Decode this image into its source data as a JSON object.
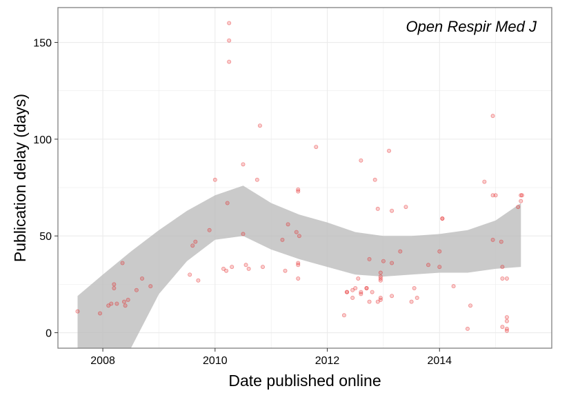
{
  "chart_data": {
    "type": "scatter",
    "title": "Open Respir Med J",
    "xlabel": "Date published online",
    "ylabel": "Publication delay (days)",
    "xlim": [
      2007.2,
      2016.0
    ],
    "ylim": [
      -8,
      168
    ],
    "x_ticks": [
      2008,
      2010,
      2012,
      2014
    ],
    "y_ticks": [
      0,
      50,
      100,
      150
    ],
    "grid": true,
    "legend": "none",
    "colors": {
      "points": "#e41a1c",
      "band": "#bdbdbd",
      "grid": "#ebebeb",
      "border": "#7f7f7f"
    },
    "smooth_band": {
      "x": [
        2007.55,
        2008.0,
        2008.5,
        2009.0,
        2009.5,
        2010.0,
        2010.5,
        2011.0,
        2011.5,
        2012.0,
        2012.5,
        2013.0,
        2013.5,
        2014.0,
        2014.5,
        2015.0,
        2015.45
      ],
      "upper": [
        19,
        30,
        42,
        53,
        63,
        71,
        76,
        67,
        61,
        57,
        52,
        50,
        50,
        51,
        53,
        58,
        67
      ],
      "lower": [
        -8,
        -8,
        -8,
        20,
        37,
        48,
        50,
        43,
        38,
        34,
        30,
        29,
        30,
        31,
        31,
        33,
        34
      ]
    },
    "points": [
      {
        "x": 2007.55,
        "y": 11
      },
      {
        "x": 2007.95,
        "y": 10
      },
      {
        "x": 2008.1,
        "y": 14
      },
      {
        "x": 2008.15,
        "y": 15
      },
      {
        "x": 2008.2,
        "y": 23
      },
      {
        "x": 2008.2,
        "y": 25
      },
      {
        "x": 2008.25,
        "y": 15
      },
      {
        "x": 2008.35,
        "y": 36
      },
      {
        "x": 2008.38,
        "y": 16
      },
      {
        "x": 2008.4,
        "y": 14
      },
      {
        "x": 2008.45,
        "y": 17
      },
      {
        "x": 2008.6,
        "y": 22
      },
      {
        "x": 2008.7,
        "y": 28
      },
      {
        "x": 2008.85,
        "y": 24
      },
      {
        "x": 2009.55,
        "y": 30
      },
      {
        "x": 2009.6,
        "y": 45
      },
      {
        "x": 2009.65,
        "y": 47
      },
      {
        "x": 2009.7,
        "y": 27
      },
      {
        "x": 2009.9,
        "y": 53
      },
      {
        "x": 2010.0,
        "y": 79
      },
      {
        "x": 2010.15,
        "y": 33
      },
      {
        "x": 2010.2,
        "y": 32
      },
      {
        "x": 2010.22,
        "y": 67
      },
      {
        "x": 2010.25,
        "y": 160
      },
      {
        "x": 2010.25,
        "y": 151
      },
      {
        "x": 2010.25,
        "y": 140
      },
      {
        "x": 2010.3,
        "y": 34
      },
      {
        "x": 2010.5,
        "y": 51
      },
      {
        "x": 2010.5,
        "y": 87
      },
      {
        "x": 2010.55,
        "y": 35
      },
      {
        "x": 2010.6,
        "y": 33
      },
      {
        "x": 2010.75,
        "y": 79
      },
      {
        "x": 2010.8,
        "y": 107
      },
      {
        "x": 2010.85,
        "y": 34
      },
      {
        "x": 2011.2,
        "y": 48
      },
      {
        "x": 2011.25,
        "y": 32
      },
      {
        "x": 2011.3,
        "y": 56
      },
      {
        "x": 2011.45,
        "y": 52
      },
      {
        "x": 2011.48,
        "y": 73
      },
      {
        "x": 2011.48,
        "y": 74
      },
      {
        "x": 2011.5,
        "y": 50
      },
      {
        "x": 2011.48,
        "y": 35
      },
      {
        "x": 2011.48,
        "y": 36
      },
      {
        "x": 2011.48,
        "y": 28
      },
      {
        "x": 2011.8,
        "y": 96
      },
      {
        "x": 2012.3,
        "y": 9
      },
      {
        "x": 2012.35,
        "y": 21
      },
      {
        "x": 2012.35,
        "y": 21
      },
      {
        "x": 2012.45,
        "y": 18
      },
      {
        "x": 2012.45,
        "y": 22
      },
      {
        "x": 2012.5,
        "y": 23
      },
      {
        "x": 2012.55,
        "y": 28
      },
      {
        "x": 2012.6,
        "y": 89
      },
      {
        "x": 2012.6,
        "y": 20
      },
      {
        "x": 2012.6,
        "y": 21
      },
      {
        "x": 2012.7,
        "y": 23
      },
      {
        "x": 2012.7,
        "y": 23
      },
      {
        "x": 2012.75,
        "y": 38
      },
      {
        "x": 2012.75,
        "y": 16
      },
      {
        "x": 2012.8,
        "y": 21
      },
      {
        "x": 2012.85,
        "y": 79
      },
      {
        "x": 2012.9,
        "y": 64
      },
      {
        "x": 2012.9,
        "y": 16
      },
      {
        "x": 2012.95,
        "y": 17
      },
      {
        "x": 2012.95,
        "y": 27
      },
      {
        "x": 2012.95,
        "y": 29
      },
      {
        "x": 2012.95,
        "y": 31
      },
      {
        "x": 2012.95,
        "y": 28
      },
      {
        "x": 2012.95,
        "y": 18
      },
      {
        "x": 2013.0,
        "y": 37
      },
      {
        "x": 2013.1,
        "y": 94
      },
      {
        "x": 2013.15,
        "y": 63
      },
      {
        "x": 2013.15,
        "y": 36
      },
      {
        "x": 2013.15,
        "y": 19
      },
      {
        "x": 2013.3,
        "y": 42
      },
      {
        "x": 2013.4,
        "y": 65
      },
      {
        "x": 2013.5,
        "y": 16
      },
      {
        "x": 2013.55,
        "y": 23
      },
      {
        "x": 2013.6,
        "y": 18
      },
      {
        "x": 2013.8,
        "y": 35
      },
      {
        "x": 2014.0,
        "y": 42
      },
      {
        "x": 2014.0,
        "y": 34
      },
      {
        "x": 2014.05,
        "y": 59
      },
      {
        "x": 2014.05,
        "y": 59
      },
      {
        "x": 2014.25,
        "y": 24
      },
      {
        "x": 2014.5,
        "y": 2
      },
      {
        "x": 2014.55,
        "y": 14
      },
      {
        "x": 2014.8,
        "y": 78
      },
      {
        "x": 2014.95,
        "y": 112
      },
      {
        "x": 2014.95,
        "y": 71
      },
      {
        "x": 2014.95,
        "y": 48
      },
      {
        "x": 2015.0,
        "y": 71
      },
      {
        "x": 2015.1,
        "y": 47
      },
      {
        "x": 2015.12,
        "y": 34
      },
      {
        "x": 2015.12,
        "y": 28
      },
      {
        "x": 2015.12,
        "y": 3
      },
      {
        "x": 2015.2,
        "y": 28
      },
      {
        "x": 2015.2,
        "y": 8
      },
      {
        "x": 2015.2,
        "y": 6
      },
      {
        "x": 2015.2,
        "y": 2
      },
      {
        "x": 2015.2,
        "y": 1
      },
      {
        "x": 2015.4,
        "y": 65
      },
      {
        "x": 2015.45,
        "y": 68
      },
      {
        "x": 2015.45,
        "y": 71
      },
      {
        "x": 2015.47,
        "y": 71
      }
    ]
  }
}
